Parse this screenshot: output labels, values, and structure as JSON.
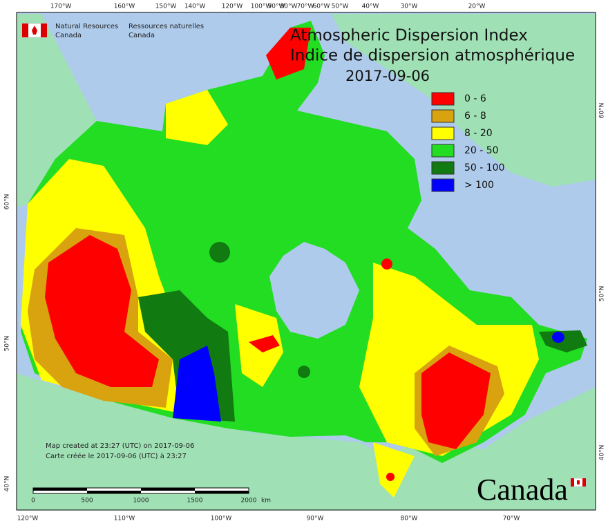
{
  "header": {
    "title": "Atmospheric Dispersion Index",
    "title_fr": "Indice de dispersion atmosphérique",
    "date": "2017-09-06"
  },
  "agency": {
    "en_1": "Natural Resources",
    "en_2": "Canada",
    "fr_1": "Ressources naturelles",
    "fr_2": "Canada"
  },
  "legend": {
    "items": [
      {
        "label": "0 - 6",
        "color": "#ff0000"
      },
      {
        "label": "6 - 8",
        "color": "#d9a20f"
      },
      {
        "label": "8 - 20",
        "color": "#ffff00"
      },
      {
        "label": "20 - 50",
        "color": "#22dd22"
      },
      {
        "label": "50 - 100",
        "color": "#117a11"
      },
      {
        "label": "> 100",
        "color": "#0000ff"
      }
    ]
  },
  "graticule": {
    "top": [
      "170°W",
      "160°W",
      "150°W",
      "140°W",
      "120°W",
      "100°W",
      "90°W",
      "80°W",
      "70°W",
      "60°W",
      "50°W",
      "40°W",
      "30°W",
      "20°W"
    ],
    "bottom": [
      "120°W",
      "110°W",
      "100°W",
      "90°W",
      "80°W",
      "70°W"
    ],
    "left": [
      "60°N",
      "50°N",
      "40°N"
    ],
    "right": [
      "60°N",
      "50°N",
      "40°N"
    ]
  },
  "credits": {
    "line1": "Map created at 23:27 (UTC) on 2017-09-06",
    "line2": "Carte créée le 2017-09-06 (UTC) à 23:27"
  },
  "scale_bar": {
    "labels": [
      "0",
      "500",
      "1000",
      "1500",
      "2000"
    ],
    "unit": "km"
  },
  "wordmark": "Canada"
}
